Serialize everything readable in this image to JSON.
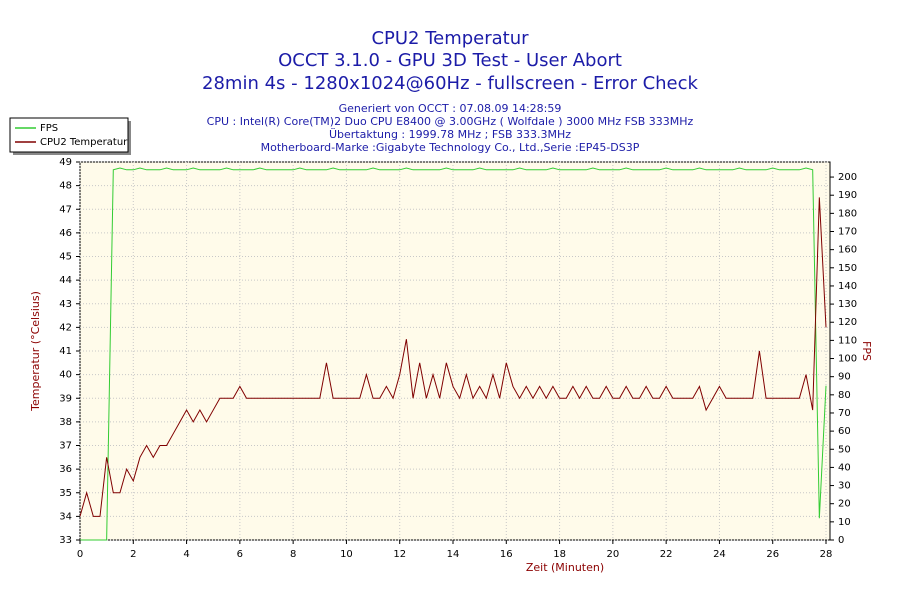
{
  "chart_data": {
    "type": "line",
    "title": "CPU2 Temperatur",
    "subtitle": [
      "OCCT 3.1.0 - GPU 3D Test - User Abort",
      "28min 4s - 1280x1024@60Hz - fullscreen - Error Check"
    ],
    "info": [
      "Generiert von OCCT : 07.08.09 14:28:59",
      "CPU : Intel(R) Core(TM)2 Duo CPU E8400 @ 3.00GHz ( Wolfdale ) 3000 MHz FSB 333MHz",
      "Übertaktung : 1999.78 MHz ; FSB 333.3MHz",
      "Motherboard-Marke :Gigabyte Technology Co., Ltd.,Serie :EP45-DS3P"
    ],
    "xlabel": "Zeit (Minuten)",
    "ylabel": "Temperatur (°Celsius)",
    "y2label": "FPS",
    "xlim": [
      0,
      28.15
    ],
    "ylim": [
      33,
      49
    ],
    "y2lim": [
      0,
      208.3
    ],
    "xticks": [
      0,
      2,
      4,
      6,
      8,
      10,
      12,
      14,
      16,
      18,
      20,
      22,
      24,
      26,
      28
    ],
    "yticks": [
      33,
      34,
      35,
      36,
      37,
      38,
      39,
      40,
      41,
      42,
      43,
      44,
      45,
      46,
      47,
      48,
      49
    ],
    "y2ticks": [
      0,
      10,
      20,
      30,
      40,
      50,
      60,
      70,
      80,
      90,
      100,
      110,
      120,
      130,
      140,
      150,
      160,
      170,
      180,
      190,
      200
    ],
    "grid": true,
    "legend": "top-left",
    "x": [
      0,
      0.25,
      0.5,
      0.75,
      1,
      1.25,
      1.5,
      1.75,
      2,
      2.25,
      2.5,
      2.75,
      3,
      3.25,
      3.5,
      3.75,
      4,
      4.25,
      4.5,
      4.75,
      5,
      5.25,
      5.5,
      5.75,
      6,
      6.25,
      6.5,
      6.75,
      7,
      7.25,
      7.5,
      7.75,
      8,
      8.25,
      8.5,
      8.75,
      9,
      9.25,
      9.5,
      9.75,
      10,
      10.25,
      10.5,
      10.75,
      11,
      11.25,
      11.5,
      11.75,
      12,
      12.25,
      12.5,
      12.75,
      13,
      13.25,
      13.5,
      13.75,
      14,
      14.25,
      14.5,
      14.75,
      15,
      15.25,
      15.5,
      15.75,
      16,
      16.25,
      16.5,
      16.75,
      17,
      17.25,
      17.5,
      17.75,
      18,
      18.25,
      18.5,
      18.75,
      19,
      19.25,
      19.5,
      19.75,
      20,
      20.25,
      20.5,
      20.75,
      21,
      21.25,
      21.5,
      21.75,
      22,
      22.25,
      22.5,
      22.75,
      23,
      23.25,
      23.5,
      23.75,
      24,
      24.25,
      24.5,
      24.75,
      25,
      25.25,
      25.5,
      25.75,
      26,
      26.25,
      26.5,
      26.75,
      27,
      27.25,
      27.5,
      27.75,
      28
    ],
    "series": [
      {
        "name": "FPS",
        "color": "#33cc33",
        "axis": "y2",
        "values": [
          0,
          0,
          0,
          0,
          0,
          204,
          205,
          204,
          204,
          205,
          204,
          204,
          204,
          205,
          204,
          204,
          204,
          205,
          204,
          204,
          204,
          204,
          205,
          204,
          204,
          204,
          204,
          205,
          204,
          204,
          204,
          204,
          204,
          205,
          204,
          204,
          204,
          204,
          205,
          204,
          204,
          204,
          204,
          204,
          205,
          204,
          204,
          204,
          204,
          205,
          204,
          204,
          204,
          204,
          204,
          205,
          204,
          204,
          204,
          204,
          205,
          204,
          204,
          204,
          204,
          204,
          205,
          204,
          204,
          204,
          204,
          205,
          204,
          204,
          204,
          204,
          204,
          205,
          204,
          204,
          204,
          204,
          205,
          204,
          204,
          204,
          204,
          204,
          205,
          204,
          204,
          204,
          204,
          205,
          204,
          204,
          204,
          204,
          204,
          205,
          204,
          204,
          204,
          204,
          205,
          204,
          204,
          204,
          204,
          205,
          204,
          12,
          85
        ]
      },
      {
        "name": "CPU2 Temperatur",
        "color": "#800000",
        "values": [
          34,
          35,
          34,
          34,
          36.5,
          35,
          35,
          36,
          35.5,
          36.5,
          37,
          36.5,
          37,
          37,
          37.5,
          38,
          38.5,
          38,
          38.5,
          38,
          38.5,
          39,
          39,
          39,
          39.5,
          39,
          39,
          39,
          39,
          39,
          39,
          39,
          39,
          39,
          39,
          39,
          39,
          40.5,
          39,
          39,
          39,
          39,
          39,
          40,
          39,
          39,
          39.5,
          39,
          40,
          41.5,
          39,
          40.5,
          39,
          40,
          39,
          40.5,
          39.5,
          39,
          40,
          39,
          39.5,
          39,
          40,
          39,
          40.5,
          39.5,
          39,
          39.5,
          39,
          39.5,
          39,
          39.5,
          39,
          39,
          39.5,
          39,
          39.5,
          39,
          39,
          39.5,
          39,
          39,
          39.5,
          39,
          39,
          39.5,
          39,
          39,
          39.5,
          39,
          39,
          39,
          39,
          39.5,
          38.5,
          39,
          39.5,
          39,
          39,
          39,
          39,
          39,
          41,
          39,
          39,
          39,
          39,
          39,
          39,
          40,
          38.5,
          47.5,
          42
        ]
      }
    ]
  }
}
